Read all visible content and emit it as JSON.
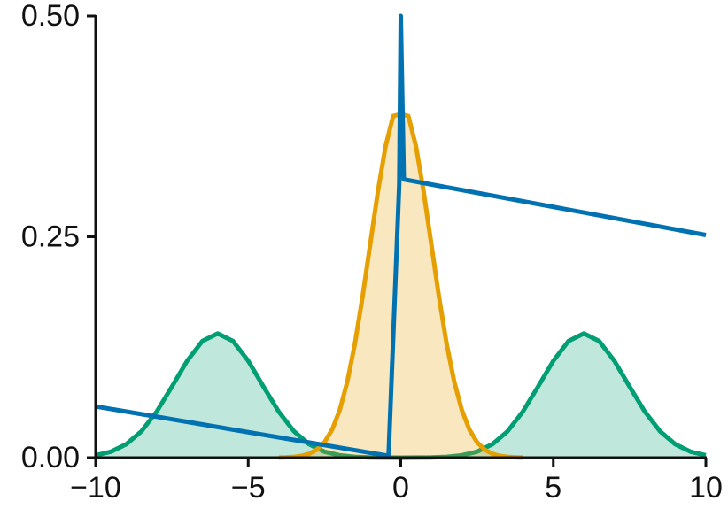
{
  "chart_data": {
    "type": "line",
    "xlim": [
      -10,
      10
    ],
    "ylim": [
      0,
      0.5
    ],
    "xticks": [
      {
        "value": -10,
        "label": "−10"
      },
      {
        "value": -5,
        "label": "−5"
      },
      0,
      5,
      10
    ],
    "yticks": [
      {
        "value": 0,
        "label": "0.00"
      },
      {
        "value": 0.25,
        "label": "0.25"
      },
      {
        "value": 0.5,
        "label": "0.50"
      }
    ],
    "series": [
      {
        "color": "#009e73",
        "fill": true,
        "x": [
          -10,
          -9.5,
          -9,
          -8.5,
          -8,
          -7.5,
          -7,
          -6.5,
          -6,
          -5.5,
          -5,
          -4.5,
          -4,
          -3.5,
          -3,
          -2.5,
          -2,
          -1.5,
          -1,
          -0.5,
          0,
          0.5,
          1,
          1.5,
          2,
          2.5,
          3,
          3.5,
          4,
          4.5,
          5,
          5.5,
          6,
          6.5,
          7,
          7.5,
          8,
          8.5,
          9,
          9.5,
          10
        ],
        "values": [
          0.0027,
          0.0067,
          0.0151,
          0.0298,
          0.0521,
          0.0804,
          0.1096,
          0.132,
          0.1405,
          0.132,
          0.1096,
          0.0804,
          0.0521,
          0.0298,
          0.0151,
          0.0067,
          0.0027,
          0.0009,
          0.0003,
          0.0001,
          0,
          0.0001,
          0.0003,
          0.0009,
          0.0027,
          0.0067,
          0.0151,
          0.0298,
          0.0521,
          0.0804,
          0.1096,
          0.132,
          0.1405,
          0.132,
          0.1096,
          0.0804,
          0.0521,
          0.0298,
          0.0151,
          0.0067,
          0.0027
        ]
      },
      {
        "color": "#e69f00",
        "fill": true,
        "x": [
          -4,
          -3.75,
          -3.5,
          -3.25,
          -3,
          -2.75,
          -2.5,
          -2.25,
          -2,
          -1.75,
          -1.5,
          -1.25,
          -1,
          -0.75,
          -0.5,
          -0.25,
          0,
          0.25,
          0.5,
          0.75,
          1,
          1.25,
          1.5,
          1.75,
          2,
          2.25,
          2.5,
          2.75,
          3,
          3.25,
          3.5,
          3.75,
          4
        ],
        "values": [
          0.0001,
          0.0004,
          0.0009,
          0.002,
          0.0044,
          0.0091,
          0.0175,
          0.0317,
          0.054,
          0.0863,
          0.1295,
          0.1826,
          0.242,
          0.3011,
          0.3521,
          0.3867,
          0.3889,
          0.3867,
          0.3521,
          0.3011,
          0.242,
          0.1826,
          0.1295,
          0.0863,
          0.054,
          0.0317,
          0.0175,
          0.0091,
          0.0044,
          0.002,
          0.0009,
          0.0004,
          0.0001
        ]
      },
      {
        "color": "#0072b2",
        "fill": false,
        "x": [
          -10,
          -0.4,
          -0.05,
          0,
          0.1,
          10
        ],
        "values": [
          0.058,
          0.002,
          0.31,
          0.5,
          0.315,
          0.252
        ]
      }
    ]
  }
}
